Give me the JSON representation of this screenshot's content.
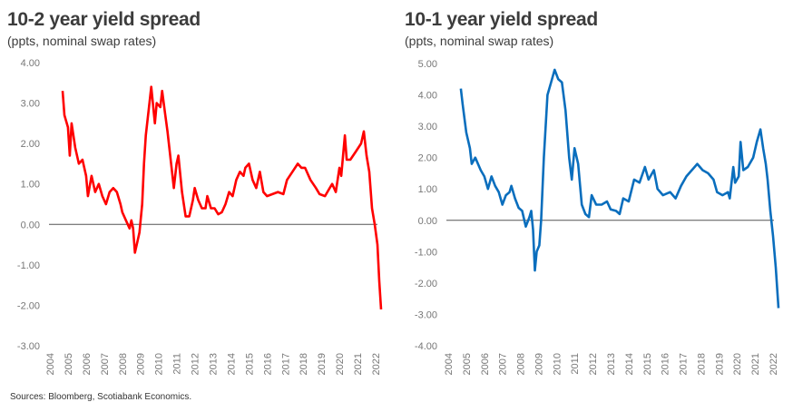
{
  "sources": "Sources: Bloomberg, Scotiabank Economics.",
  "chart_data": [
    {
      "type": "line",
      "title": "10-2 year yield spread",
      "subtitle": "(ppts, nominal swap rates)",
      "color": "#ff0000",
      "ylim": [
        -3,
        4
      ],
      "yticks": [
        "4.00",
        "3.00",
        "2.00",
        "1.00",
        "0.00",
        "-1.00",
        "-2.00",
        "-3.00"
      ],
      "xlim": [
        2004,
        2022.4
      ],
      "xticks": [
        "2004",
        "2005",
        "2006",
        "2007",
        "2008",
        "2009",
        "2010",
        "2011",
        "2012",
        "2013",
        "2014",
        "2015",
        "2016",
        "2017",
        "2018",
        "2019",
        "2020",
        "2021",
        "2022"
      ],
      "series": [
        {
          "name": "10-2 year spread",
          "points": [
            [
              2004.7,
              3.3
            ],
            [
              2004.8,
              2.7
            ],
            [
              2005.0,
              2.4
            ],
            [
              2005.1,
              1.7
            ],
            [
              2005.2,
              2.5
            ],
            [
              2005.4,
              1.9
            ],
            [
              2005.6,
              1.5
            ],
            [
              2005.8,
              1.6
            ],
            [
              2006.0,
              1.2
            ],
            [
              2006.1,
              0.7
            ],
            [
              2006.3,
              1.2
            ],
            [
              2006.5,
              0.8
            ],
            [
              2006.7,
              1.0
            ],
            [
              2006.9,
              0.7
            ],
            [
              2007.1,
              0.5
            ],
            [
              2007.3,
              0.8
            ],
            [
              2007.5,
              0.9
            ],
            [
              2007.7,
              0.8
            ],
            [
              2007.9,
              0.5
            ],
            [
              2008.0,
              0.3
            ],
            [
              2008.2,
              0.1
            ],
            [
              2008.4,
              -0.1
            ],
            [
              2008.5,
              0.1
            ],
            [
              2008.6,
              -0.1
            ],
            [
              2008.7,
              -0.7
            ],
            [
              2008.8,
              -0.5
            ],
            [
              2008.95,
              -0.2
            ],
            [
              2009.1,
              0.5
            ],
            [
              2009.2,
              1.5
            ],
            [
              2009.3,
              2.2
            ],
            [
              2009.5,
              3.0
            ],
            [
              2009.6,
              3.4
            ],
            [
              2009.8,
              2.5
            ],
            [
              2009.9,
              3.0
            ],
            [
              2010.1,
              2.9
            ],
            [
              2010.2,
              3.3
            ],
            [
              2010.35,
              2.8
            ],
            [
              2010.5,
              2.3
            ],
            [
              2010.7,
              1.5
            ],
            [
              2010.85,
              0.9
            ],
            [
              2011.0,
              1.5
            ],
            [
              2011.1,
              1.7
            ],
            [
              2011.3,
              0.8
            ],
            [
              2011.5,
              0.2
            ],
            [
              2011.7,
              0.2
            ],
            [
              2011.9,
              0.6
            ],
            [
              2012.0,
              0.9
            ],
            [
              2012.2,
              0.6
            ],
            [
              2012.4,
              0.4
            ],
            [
              2012.6,
              0.4
            ],
            [
              2012.7,
              0.7
            ],
            [
              2012.9,
              0.4
            ],
            [
              2013.1,
              0.4
            ],
            [
              2013.3,
              0.25
            ],
            [
              2013.5,
              0.3
            ],
            [
              2013.7,
              0.5
            ],
            [
              2013.9,
              0.8
            ],
            [
              2014.1,
              0.7
            ],
            [
              2014.3,
              1.1
            ],
            [
              2014.5,
              1.3
            ],
            [
              2014.7,
              1.2
            ],
            [
              2014.8,
              1.4
            ],
            [
              2015.0,
              1.5
            ],
            [
              2015.2,
              1.1
            ],
            [
              2015.4,
              0.9
            ],
            [
              2015.6,
              1.3
            ],
            [
              2015.8,
              0.8
            ],
            [
              2016.0,
              0.7
            ],
            [
              2016.3,
              0.75
            ],
            [
              2016.6,
              0.8
            ],
            [
              2016.9,
              0.75
            ],
            [
              2017.1,
              1.1
            ],
            [
              2017.4,
              1.3
            ],
            [
              2017.7,
              1.5
            ],
            [
              2017.9,
              1.4
            ],
            [
              2018.1,
              1.4
            ],
            [
              2018.4,
              1.1
            ],
            [
              2018.7,
              0.9
            ],
            [
              2018.9,
              0.75
            ],
            [
              2019.2,
              0.7
            ],
            [
              2019.4,
              0.85
            ],
            [
              2019.6,
              1.0
            ],
            [
              2019.8,
              0.8
            ],
            [
              2020.0,
              1.4
            ],
            [
              2020.1,
              1.2
            ],
            [
              2020.3,
              2.2
            ],
            [
              2020.4,
              1.6
            ],
            [
              2020.6,
              1.6
            ],
            [
              2020.9,
              1.8
            ],
            [
              2021.2,
              2.0
            ],
            [
              2021.35,
              2.3
            ],
            [
              2021.5,
              1.7
            ],
            [
              2021.65,
              1.3
            ],
            [
              2021.8,
              0.4
            ],
            [
              2021.95,
              0.0
            ],
            [
              2022.1,
              -0.5
            ],
            [
              2022.2,
              -1.4
            ],
            [
              2022.3,
              -2.1
            ]
          ]
        }
      ]
    },
    {
      "type": "line",
      "title": "10-1 year yield spread",
      "subtitle": "(ppts, nominal swap rates)",
      "color": "#0a6ebd",
      "ylim": [
        -4,
        5
      ],
      "yticks": [
        "5.00",
        "4.00",
        "3.00",
        "2.00",
        "1.00",
        "0.00",
        "-1.00",
        "-2.00",
        "-3.00",
        "-4.00"
      ],
      "xlim": [
        2004,
        2022.4
      ],
      "xticks": [
        "2004",
        "2005",
        "2006",
        "2007",
        "2008",
        "2009",
        "2010",
        "2011",
        "2012",
        "2013",
        "2014",
        "2015",
        "2016",
        "2017",
        "2018",
        "2019",
        "2020",
        "2021",
        "2022"
      ],
      "series": [
        {
          "name": "10-1 year spread",
          "points": [
            [
              2004.7,
              4.2
            ],
            [
              2004.8,
              3.7
            ],
            [
              2005.0,
              2.8
            ],
            [
              2005.2,
              2.3
            ],
            [
              2005.3,
              1.8
            ],
            [
              2005.5,
              2.0
            ],
            [
              2005.8,
              1.6
            ],
            [
              2006.0,
              1.4
            ],
            [
              2006.2,
              1.0
            ],
            [
              2006.4,
              1.4
            ],
            [
              2006.6,
              1.1
            ],
            [
              2006.8,
              0.9
            ],
            [
              2007.0,
              0.5
            ],
            [
              2007.2,
              0.8
            ],
            [
              2007.4,
              0.9
            ],
            [
              2007.5,
              1.1
            ],
            [
              2007.7,
              0.7
            ],
            [
              2007.9,
              0.4
            ],
            [
              2008.1,
              0.3
            ],
            [
              2008.3,
              -0.2
            ],
            [
              2008.5,
              0.1
            ],
            [
              2008.6,
              0.3
            ],
            [
              2008.7,
              -0.3
            ],
            [
              2008.8,
              -1.6
            ],
            [
              2008.9,
              -1.0
            ],
            [
              2009.05,
              -0.8
            ],
            [
              2009.15,
              0.0
            ],
            [
              2009.3,
              2.0
            ],
            [
              2009.5,
              4.0
            ],
            [
              2009.7,
              4.4
            ],
            [
              2009.9,
              4.8
            ],
            [
              2010.1,
              4.5
            ],
            [
              2010.3,
              4.4
            ],
            [
              2010.5,
              3.5
            ],
            [
              2010.7,
              2.0
            ],
            [
              2010.85,
              1.3
            ],
            [
              2011.0,
              2.3
            ],
            [
              2011.2,
              1.8
            ],
            [
              2011.4,
              0.5
            ],
            [
              2011.6,
              0.2
            ],
            [
              2011.8,
              0.1
            ],
            [
              2011.95,
              0.8
            ],
            [
              2012.2,
              0.5
            ],
            [
              2012.5,
              0.5
            ],
            [
              2012.8,
              0.6
            ],
            [
              2013.0,
              0.35
            ],
            [
              2013.3,
              0.3
            ],
            [
              2013.5,
              0.2
            ],
            [
              2013.7,
              0.7
            ],
            [
              2014.0,
              0.6
            ],
            [
              2014.3,
              1.3
            ],
            [
              2014.6,
              1.2
            ],
            [
              2014.9,
              1.7
            ],
            [
              2015.1,
              1.3
            ],
            [
              2015.4,
              1.6
            ],
            [
              2015.6,
              1.0
            ],
            [
              2015.9,
              0.8
            ],
            [
              2016.3,
              0.9
            ],
            [
              2016.6,
              0.7
            ],
            [
              2016.9,
              1.1
            ],
            [
              2017.2,
              1.4
            ],
            [
              2017.5,
              1.6
            ],
            [
              2017.8,
              1.8
            ],
            [
              2018.1,
              1.6
            ],
            [
              2018.4,
              1.5
            ],
            [
              2018.7,
              1.3
            ],
            [
              2018.9,
              0.9
            ],
            [
              2019.2,
              0.8
            ],
            [
              2019.5,
              0.9
            ],
            [
              2019.6,
              0.7
            ],
            [
              2019.8,
              1.7
            ],
            [
              2019.9,
              1.2
            ],
            [
              2020.1,
              1.4
            ],
            [
              2020.2,
              2.5
            ],
            [
              2020.35,
              1.6
            ],
            [
              2020.6,
              1.7
            ],
            [
              2020.9,
              2.0
            ],
            [
              2021.1,
              2.5
            ],
            [
              2021.3,
              2.9
            ],
            [
              2021.45,
              2.3
            ],
            [
              2021.6,
              1.8
            ],
            [
              2021.7,
              1.3
            ],
            [
              2021.85,
              0.3
            ],
            [
              2022.0,
              -0.5
            ],
            [
              2022.15,
              -1.5
            ],
            [
              2022.3,
              -2.8
            ]
          ]
        }
      ]
    }
  ]
}
